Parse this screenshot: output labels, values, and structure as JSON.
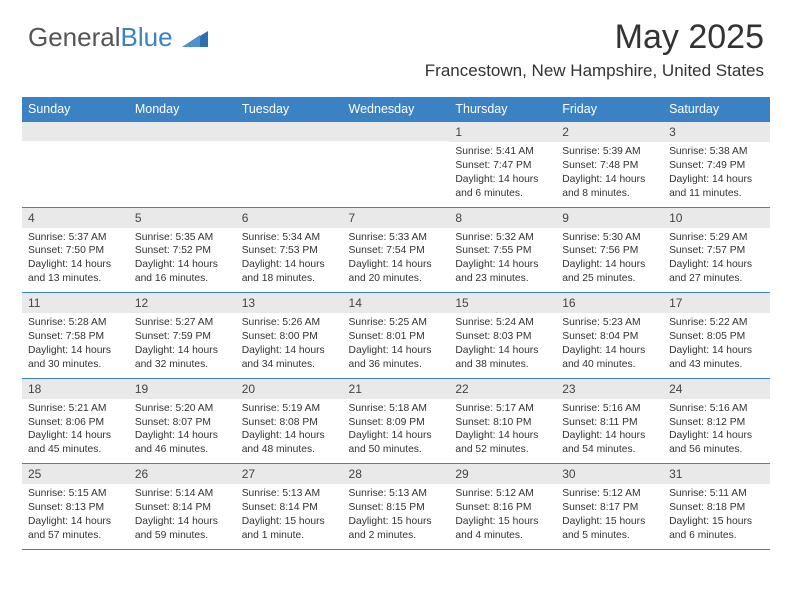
{
  "logo": {
    "text1": "General",
    "text2": "Blue"
  },
  "title": "May 2025",
  "subtitle": "Francestown, New Hampshire, United States",
  "day_headers": [
    "Sunday",
    "Monday",
    "Tuesday",
    "Wednesday",
    "Thursday",
    "Friday",
    "Saturday"
  ],
  "colors": {
    "header_bg": "#3b82c4",
    "header_fg": "#ffffff",
    "band_bg": "#e9e9e9",
    "rule": "#3b82c4",
    "text": "#333333"
  },
  "typography": {
    "title_fontsize": 34,
    "subtitle_fontsize": 17,
    "header_fontsize": 12.5,
    "daynum_fontsize": 12,
    "body_fontsize": 10.3
  },
  "weeks": [
    [
      {
        "n": "",
        "lines": []
      },
      {
        "n": "",
        "lines": []
      },
      {
        "n": "",
        "lines": []
      },
      {
        "n": "",
        "lines": []
      },
      {
        "n": "1",
        "lines": [
          "Sunrise: 5:41 AM",
          "Sunset: 7:47 PM",
          "Daylight: 14 hours and 6 minutes."
        ]
      },
      {
        "n": "2",
        "lines": [
          "Sunrise: 5:39 AM",
          "Sunset: 7:48 PM",
          "Daylight: 14 hours and 8 minutes."
        ]
      },
      {
        "n": "3",
        "lines": [
          "Sunrise: 5:38 AM",
          "Sunset: 7:49 PM",
          "Daylight: 14 hours and 11 minutes."
        ]
      }
    ],
    [
      {
        "n": "4",
        "lines": [
          "Sunrise: 5:37 AM",
          "Sunset: 7:50 PM",
          "Daylight: 14 hours and 13 minutes."
        ]
      },
      {
        "n": "5",
        "lines": [
          "Sunrise: 5:35 AM",
          "Sunset: 7:52 PM",
          "Daylight: 14 hours and 16 minutes."
        ]
      },
      {
        "n": "6",
        "lines": [
          "Sunrise: 5:34 AM",
          "Sunset: 7:53 PM",
          "Daylight: 14 hours and 18 minutes."
        ]
      },
      {
        "n": "7",
        "lines": [
          "Sunrise: 5:33 AM",
          "Sunset: 7:54 PM",
          "Daylight: 14 hours and 20 minutes."
        ]
      },
      {
        "n": "8",
        "lines": [
          "Sunrise: 5:32 AM",
          "Sunset: 7:55 PM",
          "Daylight: 14 hours and 23 minutes."
        ]
      },
      {
        "n": "9",
        "lines": [
          "Sunrise: 5:30 AM",
          "Sunset: 7:56 PM",
          "Daylight: 14 hours and 25 minutes."
        ]
      },
      {
        "n": "10",
        "lines": [
          "Sunrise: 5:29 AM",
          "Sunset: 7:57 PM",
          "Daylight: 14 hours and 27 minutes."
        ]
      }
    ],
    [
      {
        "n": "11",
        "lines": [
          "Sunrise: 5:28 AM",
          "Sunset: 7:58 PM",
          "Daylight: 14 hours and 30 minutes."
        ]
      },
      {
        "n": "12",
        "lines": [
          "Sunrise: 5:27 AM",
          "Sunset: 7:59 PM",
          "Daylight: 14 hours and 32 minutes."
        ]
      },
      {
        "n": "13",
        "lines": [
          "Sunrise: 5:26 AM",
          "Sunset: 8:00 PM",
          "Daylight: 14 hours and 34 minutes."
        ]
      },
      {
        "n": "14",
        "lines": [
          "Sunrise: 5:25 AM",
          "Sunset: 8:01 PM",
          "Daylight: 14 hours and 36 minutes."
        ]
      },
      {
        "n": "15",
        "lines": [
          "Sunrise: 5:24 AM",
          "Sunset: 8:03 PM",
          "Daylight: 14 hours and 38 minutes."
        ]
      },
      {
        "n": "16",
        "lines": [
          "Sunrise: 5:23 AM",
          "Sunset: 8:04 PM",
          "Daylight: 14 hours and 40 minutes."
        ]
      },
      {
        "n": "17",
        "lines": [
          "Sunrise: 5:22 AM",
          "Sunset: 8:05 PM",
          "Daylight: 14 hours and 43 minutes."
        ]
      }
    ],
    [
      {
        "n": "18",
        "lines": [
          "Sunrise: 5:21 AM",
          "Sunset: 8:06 PM",
          "Daylight: 14 hours and 45 minutes."
        ]
      },
      {
        "n": "19",
        "lines": [
          "Sunrise: 5:20 AM",
          "Sunset: 8:07 PM",
          "Daylight: 14 hours and 46 minutes."
        ]
      },
      {
        "n": "20",
        "lines": [
          "Sunrise: 5:19 AM",
          "Sunset: 8:08 PM",
          "Daylight: 14 hours and 48 minutes."
        ]
      },
      {
        "n": "21",
        "lines": [
          "Sunrise: 5:18 AM",
          "Sunset: 8:09 PM",
          "Daylight: 14 hours and 50 minutes."
        ]
      },
      {
        "n": "22",
        "lines": [
          "Sunrise: 5:17 AM",
          "Sunset: 8:10 PM",
          "Daylight: 14 hours and 52 minutes."
        ]
      },
      {
        "n": "23",
        "lines": [
          "Sunrise: 5:16 AM",
          "Sunset: 8:11 PM",
          "Daylight: 14 hours and 54 minutes."
        ]
      },
      {
        "n": "24",
        "lines": [
          "Sunrise: 5:16 AM",
          "Sunset: 8:12 PM",
          "Daylight: 14 hours and 56 minutes."
        ]
      }
    ],
    [
      {
        "n": "25",
        "lines": [
          "Sunrise: 5:15 AM",
          "Sunset: 8:13 PM",
          "Daylight: 14 hours and 57 minutes."
        ]
      },
      {
        "n": "26",
        "lines": [
          "Sunrise: 5:14 AM",
          "Sunset: 8:14 PM",
          "Daylight: 14 hours and 59 minutes."
        ]
      },
      {
        "n": "27",
        "lines": [
          "Sunrise: 5:13 AM",
          "Sunset: 8:14 PM",
          "Daylight: 15 hours and 1 minute."
        ]
      },
      {
        "n": "28",
        "lines": [
          "Sunrise: 5:13 AM",
          "Sunset: 8:15 PM",
          "Daylight: 15 hours and 2 minutes."
        ]
      },
      {
        "n": "29",
        "lines": [
          "Sunrise: 5:12 AM",
          "Sunset: 8:16 PM",
          "Daylight: 15 hours and 4 minutes."
        ]
      },
      {
        "n": "30",
        "lines": [
          "Sunrise: 5:12 AM",
          "Sunset: 8:17 PM",
          "Daylight: 15 hours and 5 minutes."
        ]
      },
      {
        "n": "31",
        "lines": [
          "Sunrise: 5:11 AM",
          "Sunset: 8:18 PM",
          "Daylight: 15 hours and 6 minutes."
        ]
      }
    ]
  ]
}
